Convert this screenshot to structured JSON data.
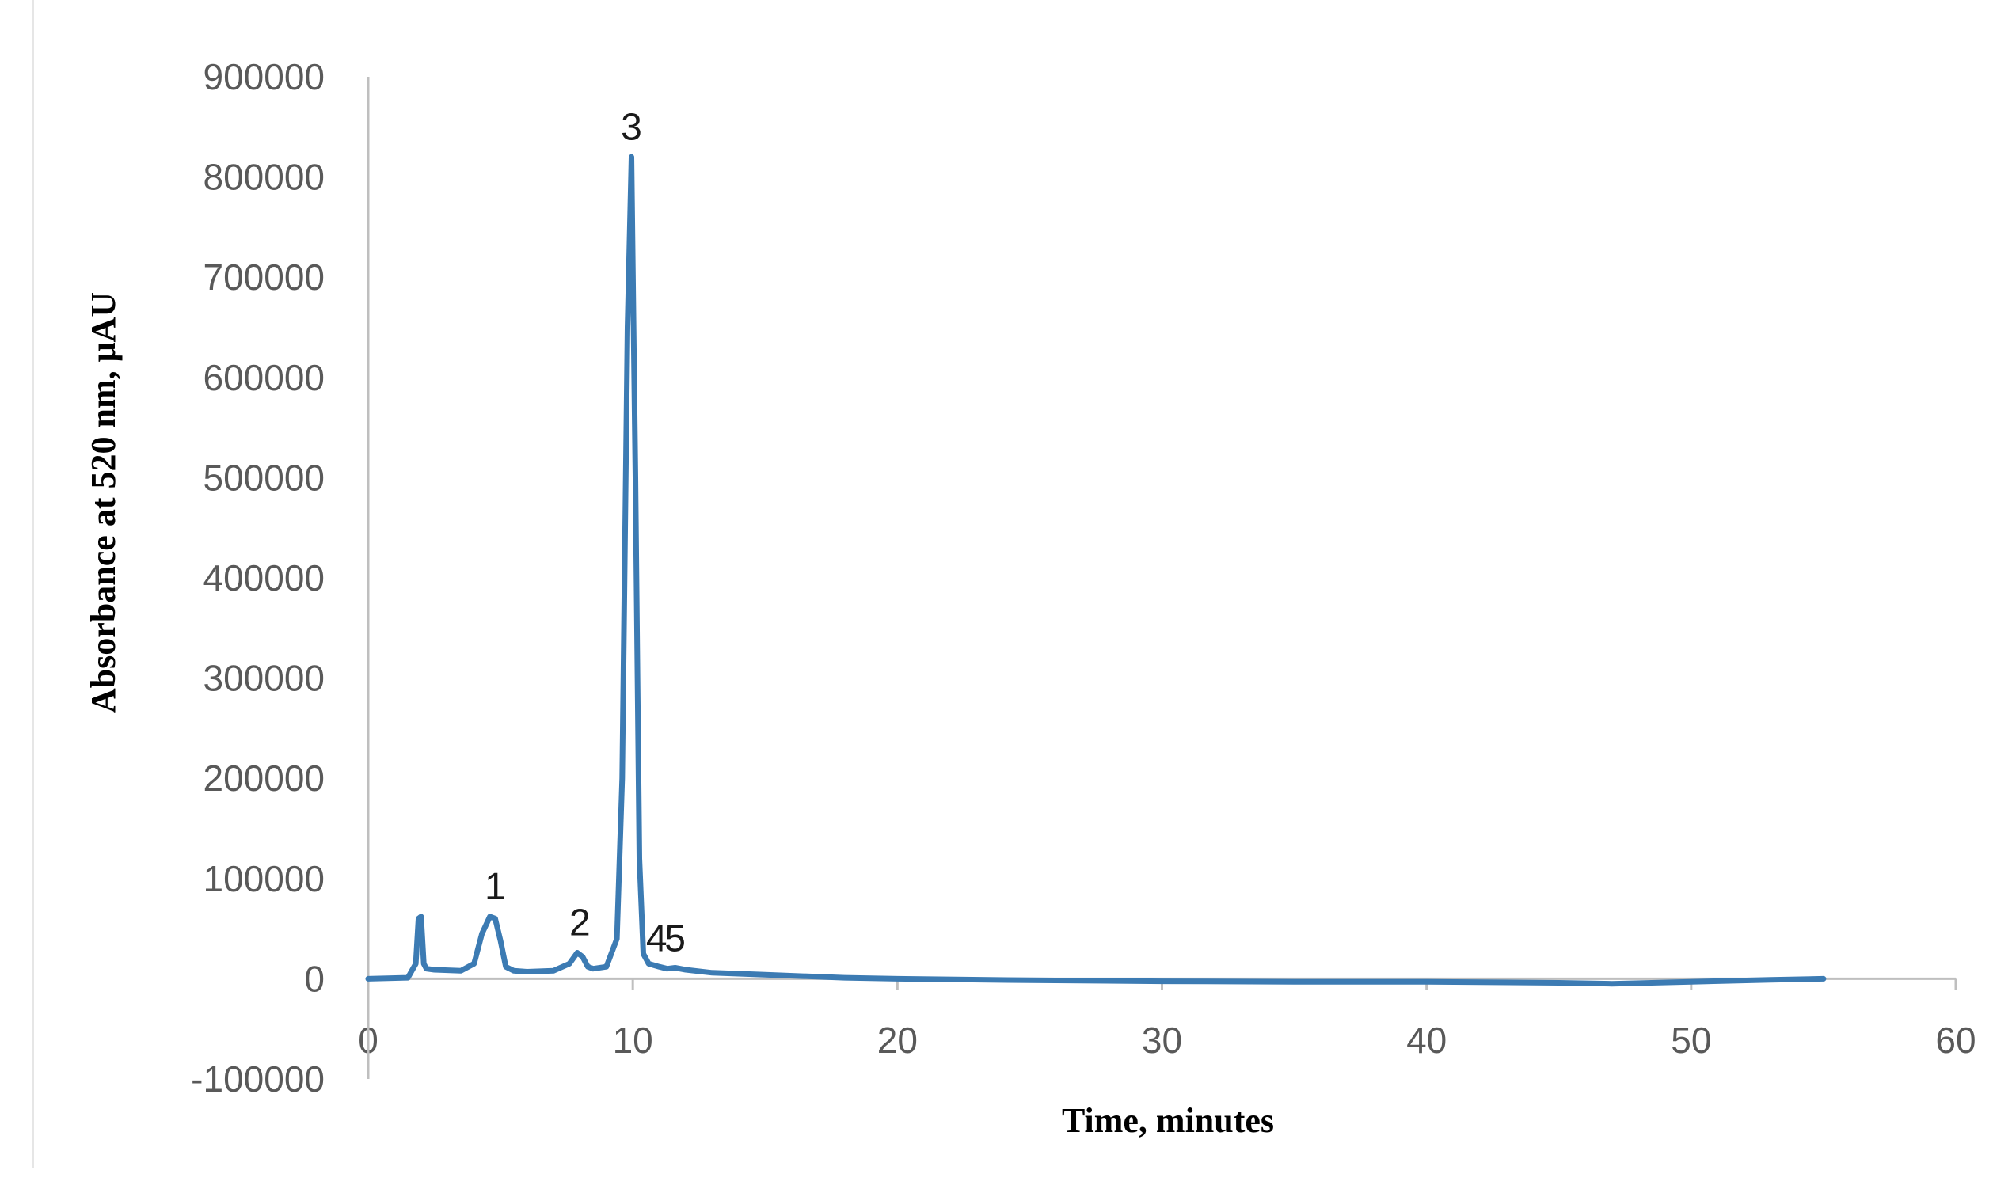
{
  "chart_data": {
    "type": "line",
    "title": "",
    "xlabel": "Time, minutes",
    "ylabel": "Absorbance at 520 nm, μAU",
    "xlim": [
      0,
      60
    ],
    "ylim": [
      -100000,
      900000
    ],
    "xticks": [
      0,
      10,
      20,
      30,
      40,
      50,
      60
    ],
    "yticks": [
      -100000,
      0,
      100000,
      200000,
      300000,
      400000,
      500000,
      600000,
      700000,
      800000,
      900000
    ],
    "grid": false,
    "legend": "none",
    "series": [
      {
        "color": "#3c7bb3",
        "x": [
          0,
          1.5,
          1.8,
          1.9,
          2.0,
          2.1,
          2.2,
          2.5,
          3.5,
          4.0,
          4.3,
          4.6,
          4.8,
          5.0,
          5.2,
          5.5,
          6.0,
          7.0,
          7.6,
          7.9,
          8.1,
          8.3,
          8.5,
          9.0,
          9.4,
          9.6,
          9.8,
          9.95,
          10.1,
          10.25,
          10.4,
          10.6,
          11.0,
          11.3,
          11.6,
          12.0,
          13.0,
          15.0,
          18.0,
          20.0,
          25.0,
          30.0,
          35.0,
          40.0,
          45.0,
          47.0,
          50.0,
          53.0,
          55.0
        ],
        "values": [
          0,
          1000,
          15000,
          60000,
          62000,
          15000,
          10000,
          9000,
          8000,
          15000,
          45000,
          62000,
          60000,
          38000,
          12000,
          8000,
          7000,
          8000,
          15000,
          26000,
          22000,
          12000,
          10000,
          12000,
          40000,
          200000,
          650000,
          820000,
          500000,
          120000,
          25000,
          15000,
          12000,
          10000,
          11000,
          9000,
          6000,
          4000,
          1000,
          0,
          -1500,
          -2500,
          -3000,
          -3000,
          -4000,
          -5000,
          -3000,
          -1000,
          0
        ]
      }
    ],
    "annotations": [
      {
        "label": "1",
        "x": 4.8,
        "y": 62000
      },
      {
        "label": "2",
        "x": 8.0,
        "y": 26000
      },
      {
        "label": "3",
        "x": 9.95,
        "y": 820000
      },
      {
        "label": "4",
        "x": 10.9,
        "y": 10000
      },
      {
        "label": "5",
        "x": 11.6,
        "y": 10000
      }
    ]
  }
}
